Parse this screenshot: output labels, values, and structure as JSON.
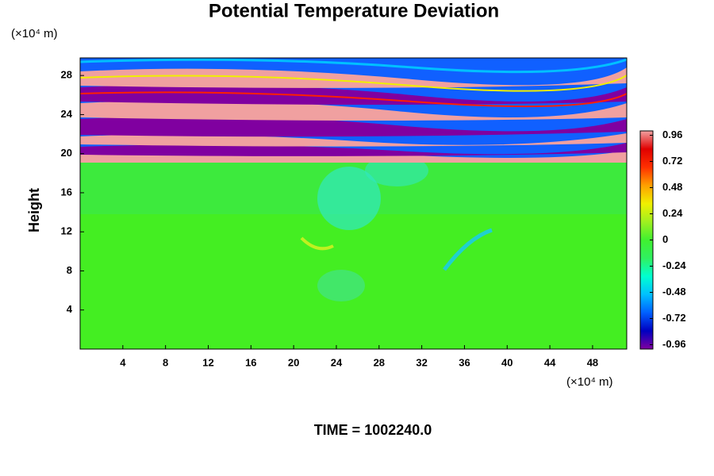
{
  "chart_data": {
    "type": "contour",
    "title": "Potential Temperature Deviation",
    "x_unit": "(×10⁴ m)",
    "y_unit": "(×10⁴ m)",
    "ylabel": "Height",
    "footer": "TIME = 1002240.0",
    "xlim": [
      0,
      51.2
    ],
    "xticks": [
      4,
      8,
      12,
      16,
      20,
      24,
      28,
      32,
      36,
      40,
      44,
      48
    ],
    "ylim": [
      0,
      29.8
    ],
    "yticks": [
      4,
      8,
      12,
      16,
      20,
      24,
      28
    ],
    "colorbar": {
      "clim": [
        -1,
        1
      ],
      "ticks": [
        0.96,
        0.72,
        0.48,
        0.24,
        0,
        -0.24,
        -0.48,
        -0.72,
        -0.96
      ],
      "colors": [
        "#8000a0",
        "#0000c0",
        "#0060ff",
        "#00c0ff",
        "#00ffd0",
        "#30f060",
        "#40f030",
        "#a0f020",
        "#f0f000",
        "#ffa000",
        "#ff3000",
        "#e00000",
        "#f0a0a0"
      ]
    }
  }
}
